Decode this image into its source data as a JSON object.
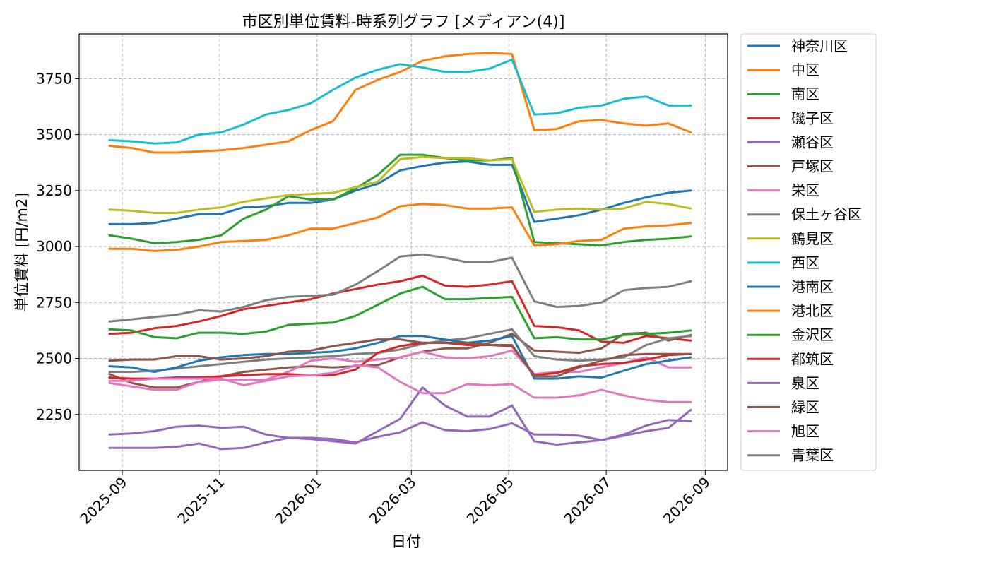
{
  "chart_data": {
    "type": "line",
    "title": "市区別単位賃料-時系列グラフ [メディアン(4)]",
    "xlabel": "日付",
    "ylabel": "単位賃料 [円/m2]",
    "xlim": [
      "2025-08-05",
      "2026-09-15"
    ],
    "ylim": [
      2000,
      3950
    ],
    "x_ticks": [
      "2025-09",
      "2025-11",
      "2026-01",
      "2026-03",
      "2026-05",
      "2026-07",
      "2026-09"
    ],
    "y_ticks": [
      2250,
      2500,
      2750,
      3000,
      3250,
      3500,
      3750
    ],
    "grid": true,
    "legend_position": "outside-right-top",
    "x": [
      "2025-08-24",
      "2025-09-07",
      "2025-09-21",
      "2025-10-05",
      "2025-10-19",
      "2025-11-02",
      "2025-11-16",
      "2025-11-30",
      "2025-12-14",
      "2025-12-28",
      "2026-01-11",
      "2026-01-25",
      "2026-02-08",
      "2026-02-22",
      "2026-03-08",
      "2026-03-22",
      "2026-04-05",
      "2026-04-19",
      "2026-05-03",
      "2026-05-17",
      "2026-05-31",
      "2026-06-14",
      "2026-06-28",
      "2026-07-12",
      "2026-07-26",
      "2026-08-09",
      "2026-08-23"
    ],
    "series": [
      {
        "name": "神奈川区",
        "color": "#1f77b4",
        "values": [
          3100,
          3100,
          3105,
          3125,
          3145,
          3145,
          3175,
          3180,
          3195,
          3195,
          3210,
          3250,
          3280,
          3340,
          3360,
          3375,
          3380,
          3365,
          3365,
          3110,
          3125,
          3140,
          3165,
          3195,
          3220,
          3240,
          3250
        ]
      },
      {
        "name": "中区",
        "color": "#ff7f0e",
        "values": [
          3450,
          3440,
          3420,
          3420,
          3425,
          3430,
          3440,
          3455,
          3470,
          3520,
          3560,
          3700,
          3745,
          3780,
          3830,
          3850,
          3860,
          3865,
          3860,
          3520,
          3525,
          3560,
          3565,
          3550,
          3540,
          3550,
          3510
        ]
      },
      {
        "name": "南区",
        "color": "#2ca02c",
        "values": [
          3050,
          3035,
          3015,
          3020,
          3030,
          3050,
          3125,
          3165,
          3225,
          3210,
          3210,
          3260,
          3320,
          3410,
          3410,
          3395,
          3385,
          3385,
          3395,
          3020,
          3015,
          3010,
          3005,
          3020,
          3030,
          3035,
          3045
        ]
      },
      {
        "name": "磯子区",
        "color": "#d62728",
        "values": [
          2610,
          2615,
          2635,
          2645,
          2665,
          2690,
          2720,
          2735,
          2750,
          2765,
          2790,
          2810,
          2830,
          2845,
          2870,
          2825,
          2820,
          2830,
          2845,
          2645,
          2640,
          2625,
          2575,
          2570,
          2600,
          2590,
          2580
        ]
      },
      {
        "name": "瀬谷区",
        "color": "#9467bd",
        "values": [
          2100,
          2100,
          2100,
          2105,
          2120,
          2095,
          2100,
          2125,
          2145,
          2145,
          2140,
          2125,
          2150,
          2170,
          2215,
          2180,
          2175,
          2185,
          2210,
          2160,
          2160,
          2155,
          2135,
          2160,
          2200,
          2225,
          2220
        ]
      },
      {
        "name": "戸塚区",
        "color": "#8c564b",
        "values": [
          2430,
          2390,
          2370,
          2370,
          2395,
          2420,
          2440,
          2450,
          2460,
          2465,
          2460,
          2465,
          2470,
          2505,
          2530,
          2545,
          2545,
          2570,
          2610,
          2535,
          2530,
          2525,
          2545,
          2610,
          2615,
          2580,
          2605
        ]
      },
      {
        "name": "栄区",
        "color": "#e377c2",
        "values": [
          2390,
          2375,
          2360,
          2360,
          2395,
          2405,
          2405,
          2405,
          2440,
          2490,
          2500,
          2485,
          2495,
          2505,
          2530,
          2505,
          2500,
          2510,
          2535,
          2430,
          2440,
          2440,
          2460,
          2480,
          2505,
          2460,
          2460
        ]
      },
      {
        "name": "保土ヶ谷区",
        "color": "#7f7f7f",
        "values": [
          2440,
          2440,
          2445,
          2455,
          2465,
          2475,
          2485,
          2495,
          2500,
          2505,
          2510,
          2520,
          2525,
          2540,
          2565,
          2580,
          2590,
          2610,
          2630,
          2510,
          2495,
          2490,
          2495,
          2505,
          2560,
          2590,
          2600
        ]
      },
      {
        "name": "鶴見区",
        "color": "#bcbd22",
        "values": [
          3165,
          3160,
          3150,
          3150,
          3165,
          3175,
          3200,
          3215,
          3230,
          3235,
          3240,
          3265,
          3290,
          3390,
          3400,
          3395,
          3395,
          3385,
          3390,
          3155,
          3165,
          3170,
          3165,
          3170,
          3200,
          3190,
          3170
        ]
      },
      {
        "name": "西区",
        "color": "#17becf",
        "values": [
          3475,
          3470,
          3460,
          3465,
          3500,
          3510,
          3545,
          3590,
          3610,
          3640,
          3700,
          3755,
          3790,
          3815,
          3800,
          3780,
          3780,
          3795,
          3835,
          3590,
          3595,
          3620,
          3630,
          3660,
          3670,
          3630,
          3630
        ]
      },
      {
        "name": "港南区",
        "color": "#1f77b4",
        "values": [
          2465,
          2460,
          2440,
          2460,
          2490,
          2505,
          2515,
          2520,
          2520,
          2525,
          2530,
          2545,
          2570,
          2600,
          2600,
          2585,
          2570,
          2580,
          2600,
          2410,
          2410,
          2420,
          2415,
          2445,
          2475,
          2490,
          2505
        ]
      },
      {
        "name": "港北区",
        "color": "#ff7f0e",
        "values": [
          2990,
          2990,
          2980,
          2985,
          3000,
          3020,
          3025,
          3030,
          3050,
          3080,
          3080,
          3105,
          3130,
          3180,
          3190,
          3185,
          3170,
          3170,
          3175,
          3005,
          3010,
          3025,
          3030,
          3080,
          3090,
          3095,
          3105
        ]
      },
      {
        "name": "金沢区",
        "color": "#2ca02c",
        "values": [
          2630,
          2625,
          2595,
          2590,
          2615,
          2615,
          2610,
          2620,
          2650,
          2655,
          2660,
          2690,
          2740,
          2790,
          2820,
          2765,
          2765,
          2770,
          2775,
          2590,
          2595,
          2585,
          2585,
          2605,
          2610,
          2615,
          2625
        ]
      },
      {
        "name": "都筑区",
        "color": "#d62728",
        "values": [
          2415,
          2410,
          2410,
          2415,
          2415,
          2420,
          2425,
          2430,
          2430,
          2425,
          2425,
          2450,
          2525,
          2555,
          2570,
          2570,
          2560,
          2560,
          2555,
          2425,
          2435,
          2465,
          2475,
          2480,
          2495,
          2515,
          2520
        ]
      },
      {
        "name": "泉区",
        "color": "#9467bd",
        "values": [
          2160,
          2165,
          2175,
          2195,
          2200,
          2190,
          2195,
          2160,
          2145,
          2140,
          2130,
          2120,
          2175,
          2230,
          2370,
          2290,
          2240,
          2240,
          2290,
          2130,
          2115,
          2125,
          2135,
          2155,
          2175,
          2190,
          2270
        ]
      },
      {
        "name": "緑区",
        "color": "#8c564b",
        "values": [
          2490,
          2495,
          2495,
          2510,
          2510,
          2495,
          2500,
          2510,
          2530,
          2535,
          2555,
          2570,
          2585,
          2585,
          2570,
          2570,
          2570,
          2560,
          2560,
          2420,
          2420,
          2460,
          2490,
          2515,
          2520,
          2520,
          2520
        ]
      },
      {
        "name": "旭区",
        "color": "#e377c2",
        "values": [
          2400,
          2400,
          2410,
          2410,
          2410,
          2410,
          2380,
          2400,
          2420,
          2425,
          2435,
          2470,
          2460,
          2395,
          2345,
          2345,
          2385,
          2380,
          2385,
          2325,
          2325,
          2335,
          2360,
          2335,
          2315,
          2305,
          2305
        ]
      },
      {
        "name": "青葉区",
        "color": "#7f7f7f",
        "values": [
          2665,
          2675,
          2685,
          2695,
          2715,
          2710,
          2730,
          2760,
          2775,
          2780,
          2785,
          2830,
          2890,
          2955,
          2965,
          2950,
          2930,
          2930,
          2950,
          2755,
          2730,
          2735,
          2750,
          2805,
          2815,
          2820,
          2845
        ]
      }
    ]
  }
}
